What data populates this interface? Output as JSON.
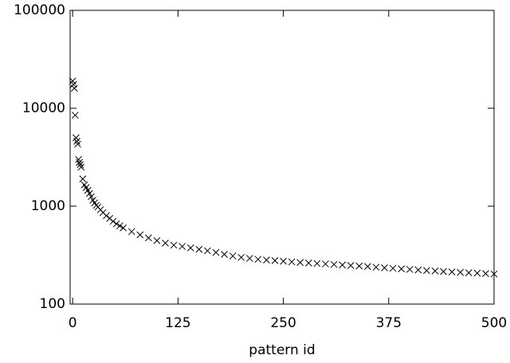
{
  "chart_data": {
    "type": "scatter",
    "x_label": "pattern id",
    "log_y": true,
    "color": "#000000",
    "xlim": [
      -3,
      500
    ],
    "xticks": [
      0,
      125,
      250,
      375,
      500
    ],
    "ylim": [
      100,
      100000
    ],
    "yticks": [
      100,
      1000,
      10000,
      100000
    ],
    "x": [
      0,
      1,
      2,
      3,
      4,
      5,
      6,
      7,
      8,
      9,
      10,
      12,
      14,
      16,
      18,
      20,
      22,
      24,
      26,
      28,
      30,
      33,
      36,
      40,
      44,
      48,
      52,
      56,
      60,
      70,
      80,
      90,
      100,
      110,
      120,
      130,
      140,
      150,
      160,
      170,
      180,
      190,
      200,
      210,
      220,
      230,
      240,
      250,
      260,
      270,
      280,
      290,
      300,
      310,
      320,
      330,
      340,
      350,
      360,
      370,
      380,
      390,
      400,
      410,
      420,
      430,
      440,
      450,
      460,
      470,
      480,
      490,
      500
    ],
    "values": [
      19000,
      17500,
      16000,
      8500,
      5000,
      4600,
      4300,
      3000,
      2800,
      2650,
      2500,
      1900,
      1650,
      1550,
      1450,
      1350,
      1250,
      1150,
      1080,
      1020,
      980,
      920,
      860,
      800,
      750,
      700,
      660,
      630,
      600,
      550,
      510,
      475,
      445,
      420,
      400,
      388,
      375,
      362,
      350,
      337,
      322,
      310,
      300,
      293,
      287,
      282,
      278,
      274,
      270,
      266,
      263,
      260,
      257,
      254,
      251,
      248,
      245,
      242,
      238,
      235,
      232,
      229,
      226,
      223,
      220,
      218,
      215,
      213,
      211,
      209,
      207,
      205,
      203
    ]
  }
}
